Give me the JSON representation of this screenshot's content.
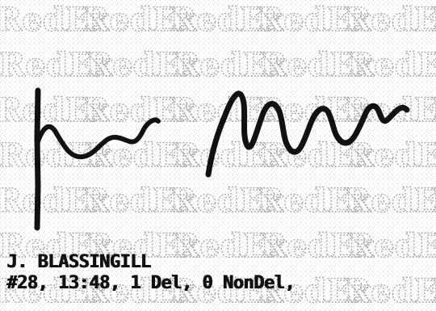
{
  "document": {
    "name_line": "J. BLASSINGILL",
    "detail_line": "#28, 13:48, 1 Del, 0 NonDel,",
    "background_watermark": "RedEx"
  },
  "colors": {
    "ink": "#111111",
    "pattern": "#9a9a9a",
    "paper": "#ffffff"
  }
}
